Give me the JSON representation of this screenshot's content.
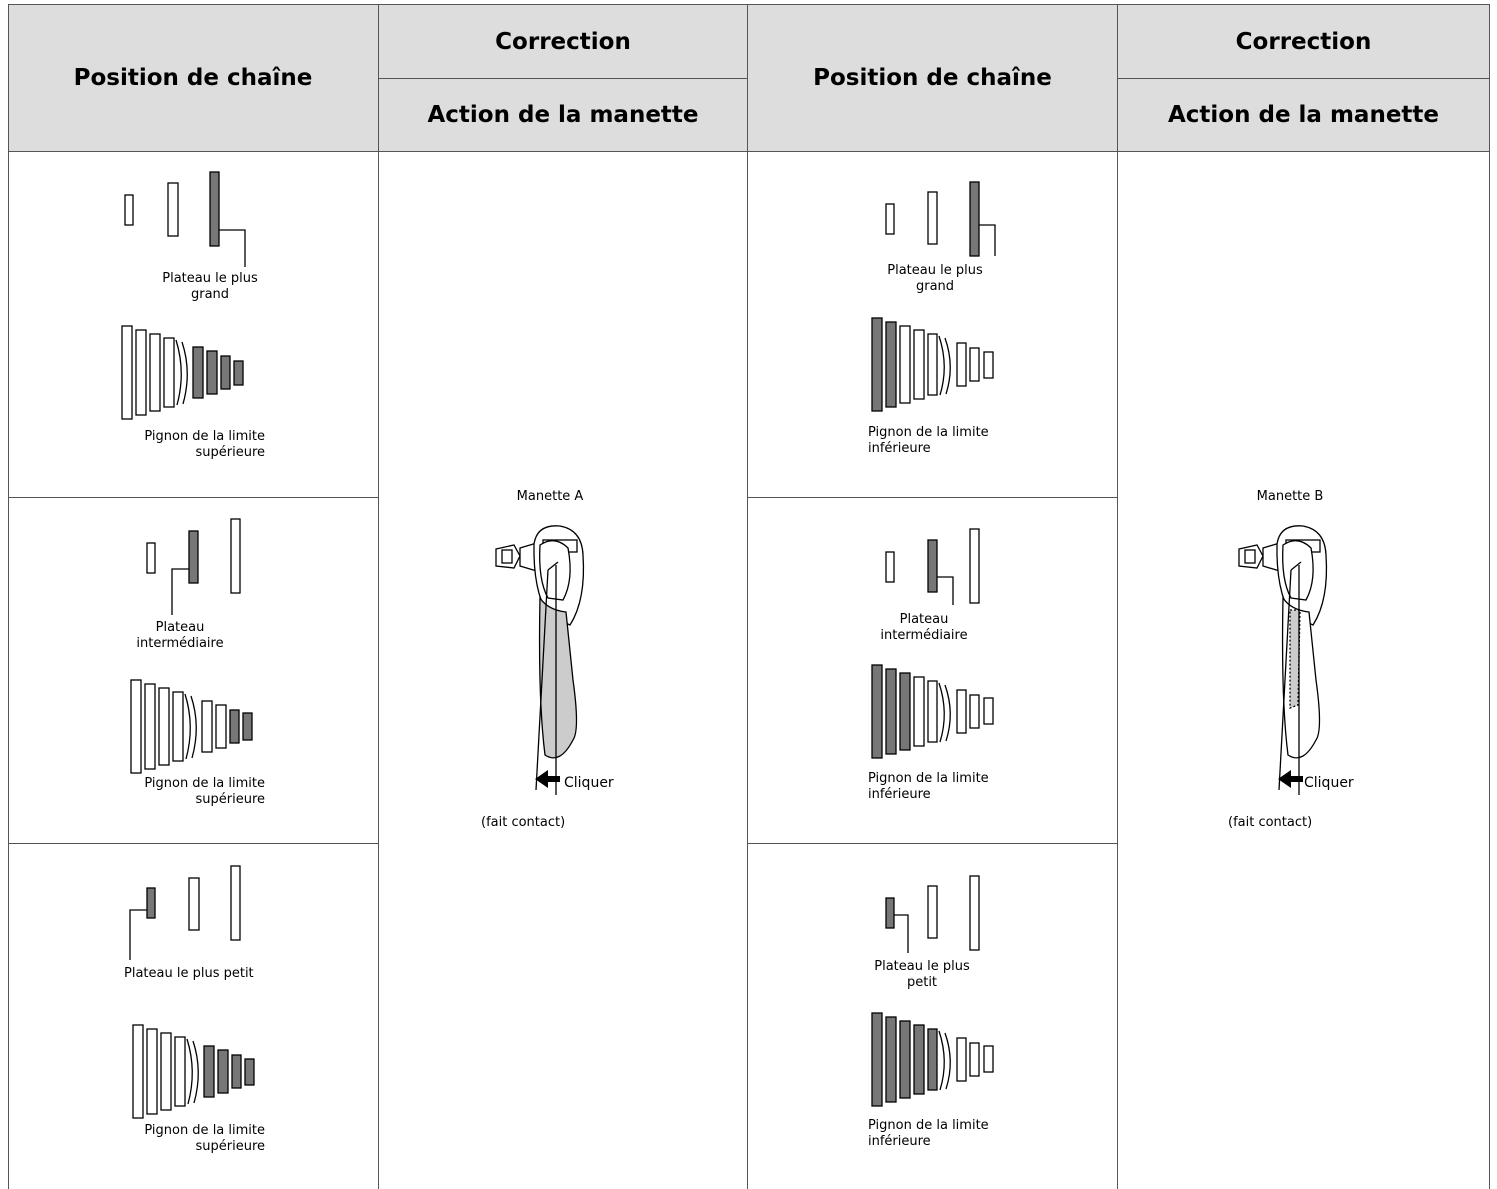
{
  "header": {
    "position_col1": "Position de chaîne",
    "correction_col1": "Correction",
    "action_col1": "Action de la manette",
    "position_col2": "Position de chaîne",
    "correction_col2": "Correction",
    "action_col2": "Action de la manette"
  },
  "left_rows": [
    {
      "chainring": "Plateau le plus grand",
      "sprocket": "Pignon de la limite supérieure"
    },
    {
      "chainring": "Plateau intermédiaire",
      "sprocket": "Pignon de la limite supérieure"
    },
    {
      "chainring": "Plateau le plus petit",
      "sprocket": "Pignon de la limite supérieure"
    }
  ],
  "right_rows": [
    {
      "chainring": "Plateau le plus grand",
      "sprocket": "Pignon de la limite inférieure"
    },
    {
      "chainring": "Plateau intermédiaire",
      "sprocket": "Pignon de la limite inférieure"
    },
    {
      "chainring": "Plateau le plus petit",
      "sprocket": "Pignon de la limite inférieure"
    }
  ],
  "lever_a": {
    "title": "Manette A",
    "click": "Cliquer",
    "note": "(fait contact)"
  },
  "lever_b": {
    "title": "Manette B",
    "click": "Cliquer",
    "note": "(fait contact)"
  },
  "colors": {
    "header_bg": "#dddddd",
    "selected_gear": "#777777",
    "lever_fill": "#cccccc",
    "rule": "#555555"
  }
}
